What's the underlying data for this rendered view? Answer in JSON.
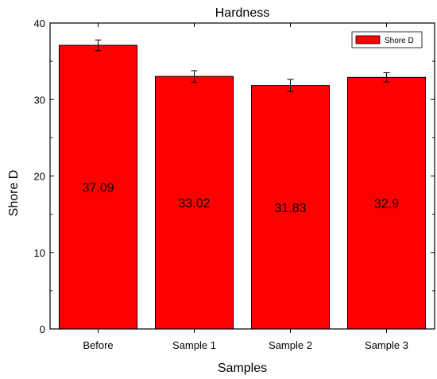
{
  "chart_data": {
    "type": "bar",
    "title": "Hardness",
    "xlabel": "Samples",
    "ylabel": "Shore D",
    "categories": [
      "Before",
      "Sample 1",
      "Sample 2",
      "Sample 3"
    ],
    "series": [
      {
        "name": "Shore D",
        "values": [
          37.09,
          33.02,
          31.83,
          32.9
        ],
        "errors": [
          0.7,
          0.75,
          0.8,
          0.6
        ],
        "data_labels": [
          "37.09",
          "33.02",
          "31.83",
          "32.9"
        ],
        "color": "#ff0000"
      }
    ],
    "ylim": [
      0,
      40
    ],
    "yticks": [
      "0",
      "10",
      "20",
      "30",
      "40"
    ],
    "grid": false,
    "legend_position": "top-right"
  }
}
